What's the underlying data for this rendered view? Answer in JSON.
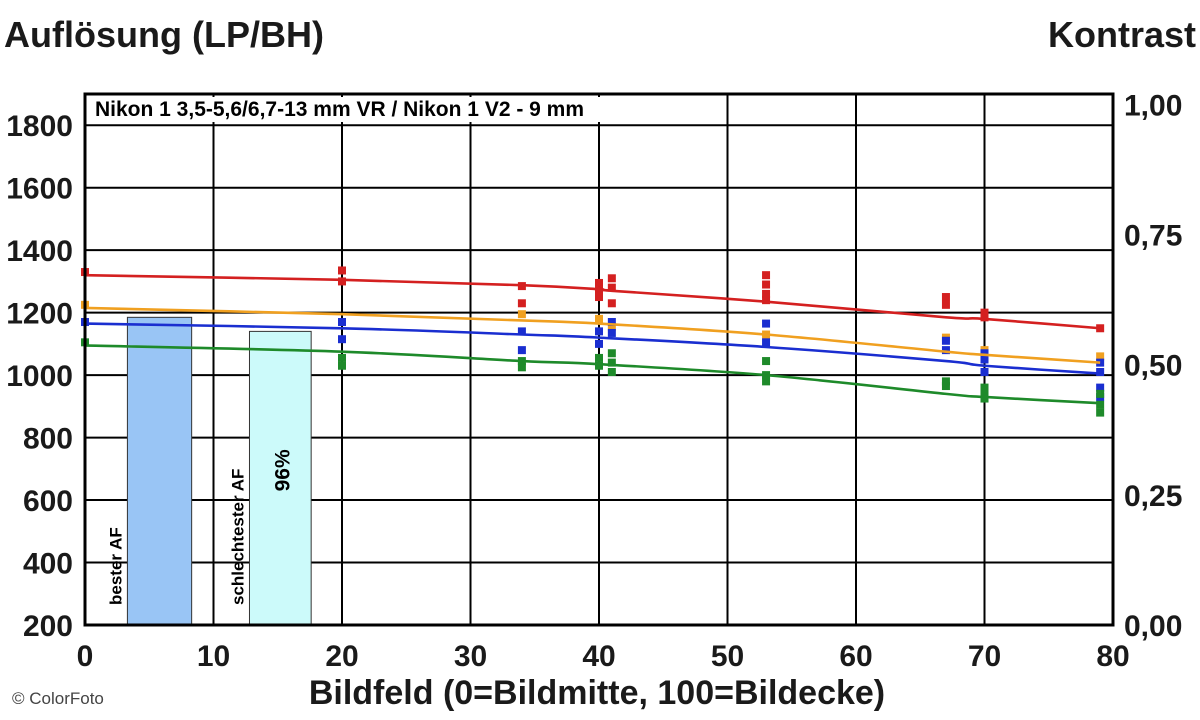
{
  "chart_data": {
    "type": "line",
    "title": "Nikon 1 3,5-5,6/6,7-13 mm VR / Nikon 1 V2 - 9 mm",
    "ylabel": "Auflösung (LP/BH)",
    "y2label": "Kontrast",
    "xlabel": "Bildfeld (0=Bildmitte, 100=Bildecke)",
    "xlim": [
      0,
      80
    ],
    "ylim": [
      200,
      1900
    ],
    "y2lim": [
      0.0,
      1.02
    ],
    "x_ticks": [
      "0",
      "10",
      "20",
      "30",
      "40",
      "50",
      "60",
      "70",
      "80"
    ],
    "y_ticks": [
      "200",
      "400",
      "600",
      "800",
      "1000",
      "1200",
      "1400",
      "1600",
      "1800"
    ],
    "y2_ticks": [
      "0,00",
      "0,25",
      "0,50",
      "0,75",
      "1,00"
    ],
    "grid": true,
    "series": [
      {
        "color": "#d42020",
        "x": [
          0,
          20,
          34,
          40,
          41,
          53,
          67,
          70,
          79
        ],
        "values": [
          1320,
          1305,
          1288,
          1275,
          1270,
          1235,
          1185,
          1180,
          1150
        ],
        "points": [
          [
            0,
            1330
          ],
          [
            20,
            1335
          ],
          [
            20,
            1300
          ],
          [
            34,
            1285
          ],
          [
            34,
            1230
          ],
          [
            40,
            1295
          ],
          [
            40,
            1270
          ],
          [
            40,
            1250
          ],
          [
            41,
            1310
          ],
          [
            41,
            1280
          ],
          [
            41,
            1230
          ],
          [
            53,
            1320
          ],
          [
            53,
            1290
          ],
          [
            53,
            1260
          ],
          [
            53,
            1240
          ],
          [
            67,
            1250
          ],
          [
            67,
            1225
          ],
          [
            70,
            1200
          ],
          [
            70,
            1185
          ],
          [
            79,
            1150
          ]
        ]
      },
      {
        "color": "#f0a020",
        "x": [
          0,
          20,
          34,
          40,
          53,
          67,
          70,
          79
        ],
        "values": [
          1215,
          1195,
          1175,
          1165,
          1130,
          1075,
          1065,
          1040
        ],
        "points": [
          [
            0,
            1225
          ],
          [
            34,
            1195
          ],
          [
            40,
            1180
          ],
          [
            41,
            1155
          ],
          [
            53,
            1130
          ],
          [
            67,
            1120
          ],
          [
            70,
            1080
          ],
          [
            79,
            1060
          ]
        ]
      },
      {
        "color": "#1a2ed0",
        "x": [
          0,
          20,
          34,
          40,
          53,
          67,
          70,
          79
        ],
        "values": [
          1165,
          1150,
          1130,
          1120,
          1090,
          1045,
          1030,
          1005
        ],
        "points": [
          [
            0,
            1170
          ],
          [
            20,
            1170
          ],
          [
            20,
            1115
          ],
          [
            34,
            1140
          ],
          [
            34,
            1080
          ],
          [
            40,
            1140
          ],
          [
            40,
            1100
          ],
          [
            41,
            1170
          ],
          [
            41,
            1135
          ],
          [
            53,
            1165
          ],
          [
            53,
            1105
          ],
          [
            67,
            1110
          ],
          [
            67,
            1080
          ],
          [
            70,
            1070
          ],
          [
            70,
            1050
          ],
          [
            70,
            1010
          ],
          [
            79,
            1040
          ],
          [
            79,
            1010
          ],
          [
            79,
            960
          ],
          [
            79,
            930
          ]
        ]
      },
      {
        "color": "#1e8a2a",
        "x": [
          0,
          20,
          34,
          40,
          53,
          67,
          70,
          79
        ],
        "values": [
          1095,
          1075,
          1045,
          1035,
          1000,
          940,
          930,
          910
        ],
        "points": [
          [
            0,
            1105
          ],
          [
            20,
            1055
          ],
          [
            20,
            1030
          ],
          [
            34,
            1045
          ],
          [
            34,
            1025
          ],
          [
            40,
            1055
          ],
          [
            40,
            1030
          ],
          [
            41,
            1070
          ],
          [
            41,
            1040
          ],
          [
            41,
            1010
          ],
          [
            53,
            1045
          ],
          [
            53,
            1000
          ],
          [
            53,
            980
          ],
          [
            67,
            980
          ],
          [
            67,
            965
          ],
          [
            70,
            960
          ],
          [
            70,
            940
          ],
          [
            70,
            925
          ],
          [
            79,
            940
          ],
          [
            79,
            905
          ],
          [
            79,
            880
          ]
        ]
      }
    ],
    "bars": [
      {
        "name": "bester AF",
        "x_from": 3.3,
        "x_to": 8.3,
        "value": 1185,
        "color": "#99c5f5"
      },
      {
        "name": "schlechtester AF",
        "x_from": 12.8,
        "x_to": 17.6,
        "value": 1140,
        "color": "#ccfafa",
        "label": "96%"
      }
    ]
  },
  "footer": {
    "copyright": "© ColorFoto"
  }
}
